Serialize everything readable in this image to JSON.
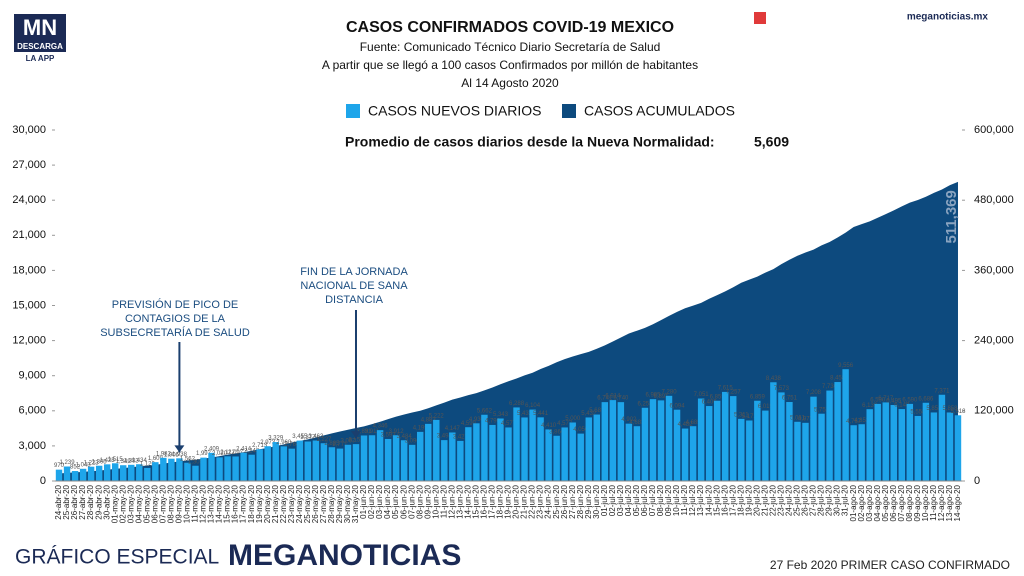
{
  "header": {
    "logo": "MN",
    "logo_sub": "DESCARGA",
    "logo_app": "LA APP",
    "site": "meganoticias.mx"
  },
  "chart_data": {
    "type": "bar_area",
    "title": "CASOS CONFIRMADOS COVID-19 MEXICO",
    "subtitle": [
      "Fuente: Comunicado Técnico Diario Secretaría de Salud",
      "A partir que se llegó a 100 casos Confirmados por millón de habitantes",
      "Al 14 Agosto 2020"
    ],
    "average_label": "Promedio de casos diarios desde la Nueva Normalidad:",
    "average_value": "5,609",
    "annotations": [
      "PREVISIÓN DE PICO DE\nCONTAGIOS DE LA\nSUBSECRETARÍA DE SALUD",
      "FIN DE LA JORNADA\nNACIONAL DE SANA\nDISTANCIA"
    ],
    "total_label": "511,369",
    "categories": [
      "24-abr-20",
      "25-abr-20",
      "26-abr-20",
      "27-abr-20",
      "28-abr-20",
      "29-abr-20",
      "30-abr-20",
      "01-may-20",
      "02-may-20",
      "03-may-20",
      "04-may-20",
      "05-may-20",
      "06-may-20",
      "07-may-20",
      "08-may-20",
      "09-may-20",
      "10-may-20",
      "11-may-20",
      "12-may-20",
      "13-may-20",
      "14-may-20",
      "15-may-20",
      "16-may-20",
      "17-may-20",
      "18-may-20",
      "19-may-20",
      "20-may-20",
      "21-may-20",
      "22-may-20",
      "23-may-20",
      "24-may-20",
      "25-may-20",
      "26-may-20",
      "27-may-20",
      "28-may-20",
      "29-may-20",
      "30-may-20",
      "31-may-20",
      "01-jun-20",
      "02-jun-20",
      "03-jun-20",
      "04-jun-20",
      "05-jun-20",
      "06-jun-20",
      "07-jun-20",
      "08-jun-20",
      "09-jun-20",
      "10-jun-20",
      "11-jun-20",
      "12-jun-20",
      "13-jun-20",
      "14-jun-20",
      "15-jun-20",
      "16-jun-20",
      "17-jun-20",
      "18-jun-20",
      "19-jun-20",
      "20-jun-20",
      "21-jun-20",
      "22-jun-20",
      "23-jun-20",
      "24-jun-20",
      "25-jun-20",
      "26-jun-20",
      "27-jun-20",
      "28-jun-20",
      "29-jun-20",
      "30-jun-20",
      "01-jul-20",
      "02-jul-20",
      "03-jul-20",
      "04-jul-20",
      "05-jul-20",
      "06-jul-20",
      "07-jul-20",
      "08-jul-20",
      "09-jul-20",
      "10-jul-20",
      "11-jul-20",
      "12-jul-20",
      "13-jul-20",
      "14-jul-20",
      "15-jul-20",
      "16-jul-20",
      "17-jul-20",
      "18-jul-20",
      "19-jul-20",
      "20-jul-20",
      "21-jul-20",
      "22-jul-20",
      "23-jul-20",
      "24-jul-20",
      "25-jul-20",
      "26-jul-20",
      "27-jul-20",
      "28-jul-20",
      "29-jul-20",
      "30-jul-20",
      "31-jul-20",
      "01-ago-20",
      "02-ago-20",
      "03-ago-20",
      "04-ago-20",
      "05-ago-20",
      "06-ago-20",
      "07-ago-20",
      "08-ago-20",
      "09-ago-20",
      "10-ago-20",
      "11-ago-20",
      "12-ago-20",
      "13-ago-20",
      "14-ago-20"
    ],
    "series": [
      {
        "name": "CASOS NUEVOS DIARIOS",
        "color": "#1ea5ea",
        "axis": "y",
        "values": [
          970,
          1239,
          852,
          1043,
          1223,
          1305,
          1425,
          1515,
          1349,
          1383,
          1434,
          1120,
          1609,
          1982,
          1906,
          1938,
          1562,
          1305,
          1997,
          2409,
          2020,
          2112,
          2097,
          2414,
          2248,
          2713,
          2973,
          3329,
          2960,
          2764,
          3455,
          3377,
          3463,
          3227,
          2885,
          2771,
          3097,
          3152,
          3891,
          3911,
          4346,
          3593,
          3912,
          3484,
          3090,
          4199,
          4883,
          5222,
          3494,
          4147,
          3427,
          4599,
          4930,
          5662,
          4790,
          5343,
          4577,
          6288,
          5432,
          6104,
          5441,
          4410,
          3866,
          4577,
          5000,
          4050,
          5432,
          5681,
          6741,
          6914,
          6740,
          4902,
          4683,
          6258,
          6995,
          6891,
          7280,
          6094,
          4482,
          4685,
          7051,
          6406,
          6859,
          7615,
          7257,
          5311,
          5172,
          6859,
          6019,
          8438,
          7573,
          6751,
          5061,
          4973,
          7208,
          5752,
          7730,
          8458,
          9556,
          4767,
          4853,
          6139,
          6590,
          6717,
          6495,
          6148,
          6590,
          5558,
          6686,
          5858,
          7371,
          5858,
          5618
        ],
        "value_labels": [
          "970",
          "1,239",
          "852",
          "1,043",
          "1,223",
          "1,305",
          "1,425",
          "1,515",
          "1,349",
          "1,383",
          "1,434",
          "1,120",
          "1,609",
          "1,982",
          "1,906",
          "1,938",
          "1,562",
          "1,305",
          "1,997",
          "2,409",
          "2,020",
          "2,112",
          "2,097",
          "2,414",
          "2,248",
          "2,713",
          "2,973",
          "3,329",
          "2,960",
          "2,764",
          "3,455",
          "3,377",
          "3,463",
          "3,227",
          "2,885",
          "2,771",
          "3,097",
          "3,152",
          "3,891",
          "3,911",
          "4,346",
          "3,593",
          "3,912",
          "3,484",
          "3,090",
          "4,199",
          "4,883",
          "5,222",
          "3,494",
          "4,147",
          "3,427",
          "4,599",
          "4,930",
          "5,662",
          "4,790",
          "5,343",
          "4,577",
          "6,288",
          "5,432",
          "6,104",
          "5,441",
          "4,410",
          "3,866",
          "4,577",
          "5,000",
          "4,050",
          "5,432",
          "5,681",
          "6,741",
          "6,914",
          "6,740",
          "4,902",
          "4,683",
          "6,258",
          "6,995",
          "6,891",
          "7,280",
          "6,094",
          "4,482",
          "4,685",
          "7,051",
          "6,406",
          "6,859",
          "7,615",
          "7,257",
          "5,311",
          "5,172",
          "6,859",
          "6,019",
          "8,438",
          "7,573",
          "6,751",
          "5,061",
          "4,973",
          "7,208",
          "5,752",
          "7,730",
          "8,458",
          "9,556",
          "4,767",
          "4,853",
          "6,139",
          "6,590",
          "6,717",
          "6,495",
          "6,148",
          "6,590",
          "5,558",
          "6,686",
          "5,858",
          "7,371",
          "5,858",
          "5,618"
        ]
      },
      {
        "name": "CASOS ACUMULADOS",
        "color": "#0d4a7e",
        "axis": "y2",
        "values": [
          12872,
          13842,
          14677,
          15529,
          16752,
          17799,
          19224,
          20739,
          22088,
          23471,
          24905,
          26025,
          27634,
          29616,
          31522,
          33460,
          35022,
          36327,
          38324,
          40186,
          42595,
          45032,
          47144,
          49219,
          51633,
          54346,
          56594,
          59567,
          62527,
          65856,
          68620,
          71105,
          74560,
          78023,
          81400,
          84627,
          87512,
          90664,
          93435,
          97326,
          101238,
          105680,
          110026,
          113619,
          117103,
          120102,
          124301,
          129184,
          133974,
          139196,
          142690,
          146837,
          150264,
          154863,
          159793,
          165455,
          170485,
          175202,
          180545,
          185122,
          191410,
          196847,
          202951,
          208392,
          212802,
          216852,
          220657,
          226089,
          231770,
          238511,
          245251,
          252165,
          256848,
          261750,
          268008,
          275003,
          282283,
          289174,
          295268,
          299750,
          304435,
          311486,
          317635,
          324041,
          331298,
          338913,
          344224,
          349396,
          356255,
          362274,
          370712,
          378285,
          385036,
          390516,
          395489,
          402697,
          408449,
          416179,
          424637,
          434193,
          439046,
          443813,
          449961,
          456100,
          462690,
          469407,
          475902,
          480278,
          485836,
          492522,
          498380,
          505751,
          511369
        ]
      }
    ],
    "ylim": [
      0,
      30000
    ],
    "yticks": [
      0,
      {
        "value": 3000,
        "label": "3,000"
      },
      {
        "value": 6000,
        "label": "6,000"
      },
      {
        "value": 9000,
        "label": "9,000"
      },
      {
        "value": 12000,
        "label": "12,000"
      },
      {
        "value": 15000,
        "label": "15,000"
      },
      {
        "value": 18000,
        "label": "18,000"
      },
      {
        "value": 21000,
        "label": "21,000"
      },
      {
        "value": 24000,
        "label": "24,000"
      },
      {
        "value": 27000,
        "label": "27,000"
      },
      {
        "value": 30000,
        "label": "30,000"
      }
    ],
    "y2lim": [
      0,
      600000
    ],
    "y2ticks": [
      0,
      {
        "value": 120000,
        "label": "120,000"
      },
      {
        "value": 240000,
        "label": "240,000"
      },
      {
        "value": 360000,
        "label": "360,000"
      },
      {
        "value": 480000,
        "label": "480,000"
      },
      {
        "value": 600000,
        "label": "600,000"
      }
    ],
    "legend": "top"
  },
  "footer": {
    "left": "GRÁFICO ESPECIAL",
    "brand": "MEGANOTICIAS",
    "right": "27 Feb 2020 PRIMER CASO CONFIRMADO"
  }
}
